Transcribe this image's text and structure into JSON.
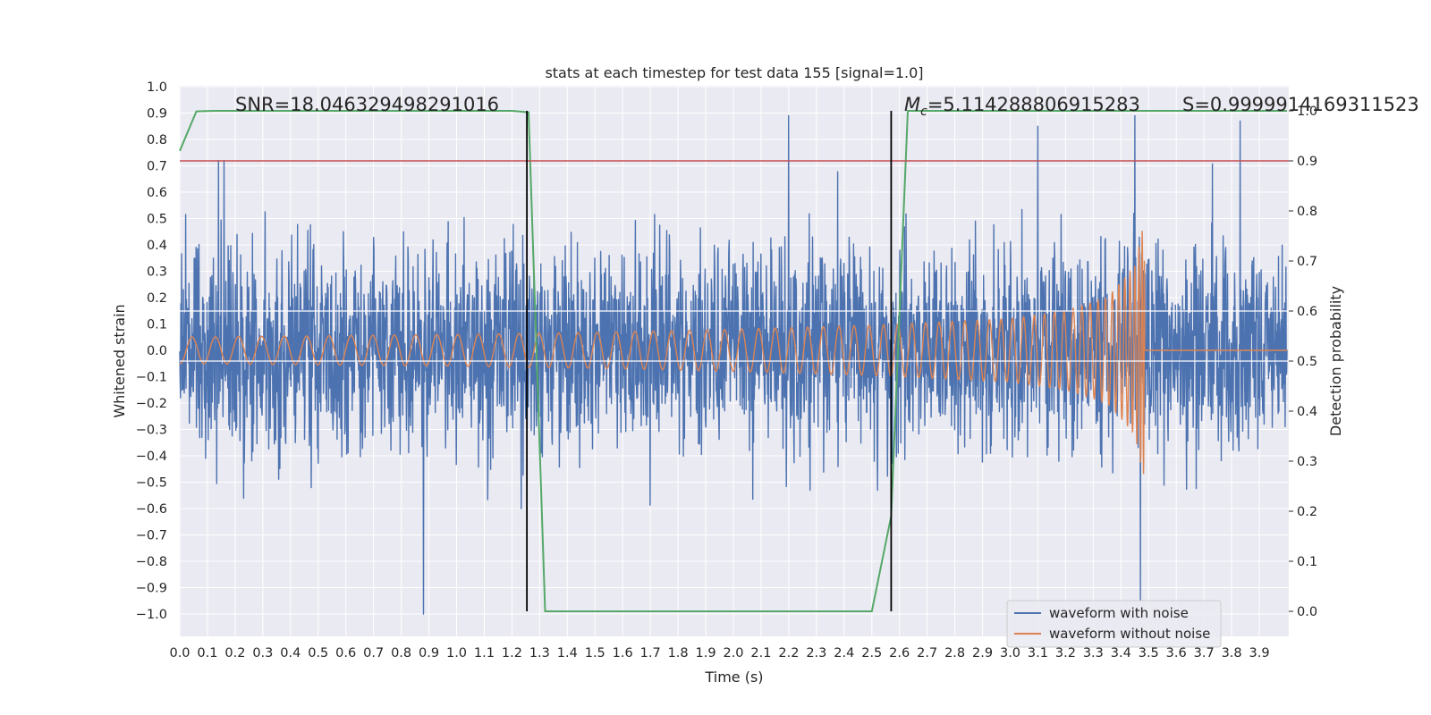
{
  "chart_data": {
    "type": "line",
    "title": "stats at each timestep for test data 155 [signal=1.0]",
    "xlabel": "Time (s)",
    "ylabel": "Whitened strain",
    "y2label": "Detection probability",
    "xlim": [
      0.0,
      4.0
    ],
    "ylim": [
      -1.09,
      1.0
    ],
    "y2lim": [
      -0.05,
      1.0
    ],
    "x_ticks": [
      "0.0",
      "0.1",
      "0.2",
      "0.3",
      "0.4",
      "0.5",
      "0.6",
      "0.7",
      "0.8",
      "0.9",
      "1.0",
      "1.1",
      "1.2",
      "1.3",
      "1.4",
      "1.5",
      "1.6",
      "1.7",
      "1.8",
      "1.9",
      "2.0",
      "2.1",
      "2.2",
      "2.3",
      "2.4",
      "2.5",
      "2.6",
      "2.7",
      "2.8",
      "2.9",
      "3.0",
      "3.1",
      "3.2",
      "3.3",
      "3.4",
      "3.5",
      "3.6",
      "3.7",
      "3.8",
      "3.9"
    ],
    "y_ticks": [
      "1.0",
      "0.9",
      "0.8",
      "0.7",
      "0.6",
      "0.5",
      "0.4",
      "0.3",
      "0.2",
      "0.1",
      "0.0",
      "−0.1",
      "−0.2",
      "−0.3",
      "−0.4",
      "−0.5",
      "−0.6",
      "−0.7",
      "−0.8",
      "−0.9",
      "−1.0"
    ],
    "y2_ticks": [
      "1.0",
      "0.9",
      "0.8",
      "0.7",
      "0.6",
      "0.5",
      "0.4",
      "0.3",
      "0.2",
      "0.1",
      "0.0"
    ],
    "grid": true,
    "legend_position": "lower-right",
    "annotations": {
      "snr": "SNR=18.046329498291016",
      "mc_symbol": "M",
      "mc_sub": "c",
      "mc_value": "=5.114288806915283",
      "s": "S=0.9999914169311523"
    },
    "vertical_lines_x": [
      1.254,
      2.57
    ],
    "threshold_y2": 0.9,
    "series": [
      {
        "name": "waveform with noise",
        "axis": "left",
        "color": "#4c72b0",
        "peaks_x": [
          0.14,
          0.16,
          0.88,
          2.2,
          3.1,
          3.45,
          3.47,
          3.83
        ],
        "peaks_y": [
          0.72,
          0.72,
          -1.0,
          0.89,
          0.85,
          0.89,
          -0.95,
          0.87
        ]
      },
      {
        "name": "waveform without noise",
        "axis": "left",
        "color": "#dd8452",
        "amplitude_x": [
          0.0,
          0.5,
          1.0,
          1.5,
          2.0,
          2.5,
          3.0,
          3.2,
          3.35,
          3.45,
          3.48
        ],
        "amplitude_y": [
          0.05,
          0.055,
          0.06,
          0.068,
          0.08,
          0.095,
          0.12,
          0.15,
          0.2,
          0.32,
          0.47
        ],
        "end_x": 3.485
      },
      {
        "name": "detection probability",
        "axis": "right",
        "color": "#55a868",
        "x": [
          0.0,
          0.06,
          0.12,
          1.2,
          1.26,
          1.32,
          2.5,
          2.57,
          2.63,
          4.0
        ],
        "y": [
          0.92,
          0.999,
          1.0,
          1.0,
          0.997,
          0.0,
          0.0,
          0.19,
          1.0,
          1.0
        ]
      }
    ]
  },
  "colors": {
    "plot_bg": "#eaeaf2",
    "grid": "#ffffff",
    "threshold": "#c44e52",
    "vline": "#000000",
    "legend_bg": "#eaeaf2",
    "legend_border": "#cccccc"
  }
}
